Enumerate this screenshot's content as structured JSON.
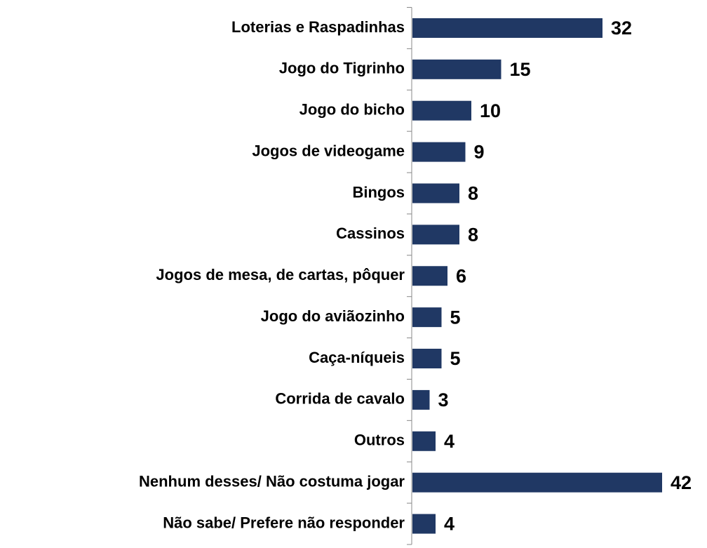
{
  "chart_data": {
    "type": "bar",
    "orientation": "horizontal",
    "categories": [
      "Loterias e Raspadinhas",
      "Jogo do Tigrinho",
      "Jogo do bicho",
      "Jogos de videogame",
      "Bingos",
      "Cassinos",
      "Jogos de mesa, de cartas, pôquer",
      "Jogo do aviãozinho",
      "Caça-níqueis",
      "Corrida de cavalo",
      "Outros",
      "Nenhum desses/ Não costuma jogar",
      "Não sabe/ Prefere não responder"
    ],
    "values": [
      32,
      15,
      10,
      9,
      8,
      8,
      6,
      5,
      5,
      3,
      4,
      42,
      4
    ],
    "color": "#203864"
  }
}
